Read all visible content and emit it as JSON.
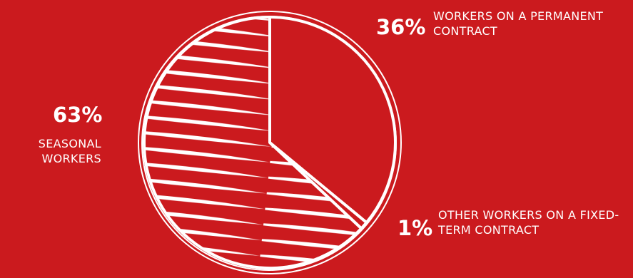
{
  "chart_data": {
    "type": "pie",
    "categories": [
      "WORKERS ON A PERMANENT CONTRACT",
      "OTHER WORKERS ON A FIXED-TERM CONTRACT",
      "SEASONAL WORKERS"
    ],
    "values": [
      36,
      1,
      63
    ],
    "value_labels": [
      "36%",
      "1%",
      "63%"
    ]
  }
}
